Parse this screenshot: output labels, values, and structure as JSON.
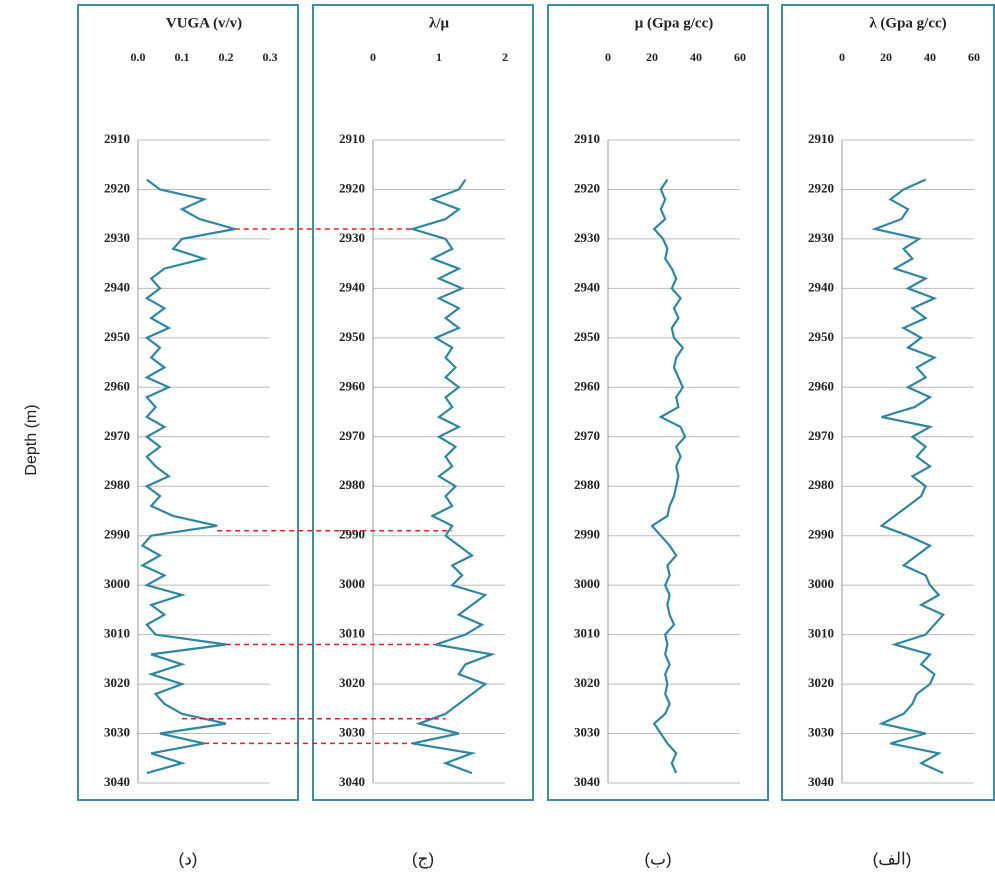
{
  "y_label": "Depth (m)",
  "depth": [
    2918,
    2920,
    2922,
    2924,
    2926,
    2928,
    2930,
    2932,
    2934,
    2936,
    2938,
    2940,
    2942,
    2944,
    2946,
    2948,
    2950,
    2952,
    2954,
    2956,
    2958,
    2960,
    2962,
    2964,
    2966,
    2968,
    2970,
    2972,
    2974,
    2976,
    2978,
    2980,
    2982,
    2984,
    2986,
    2988,
    2990,
    2992,
    2994,
    2996,
    2998,
    3000,
    3002,
    3004,
    3006,
    3008,
    3010,
    3012,
    3014,
    3016,
    3018,
    3020,
    3022,
    3024,
    3026,
    3028,
    3030,
    3032,
    3034,
    3036,
    3038
  ],
  "correlation_depths": [
    2928,
    2989,
    3012,
    3027,
    3032
  ],
  "chart_data": [
    {
      "type": "line",
      "title": "VUGA (v/v)",
      "caption": "(د)",
      "color": "#2f86a3",
      "xlim": [
        0,
        0.3
      ],
      "xticks": [
        {
          "value": 0,
          "label": "0.0"
        },
        0.1,
        0.2,
        0.3
      ],
      "ylim": [
        2910,
        3040
      ],
      "yticks": [
        2910,
        2920,
        2930,
        2940,
        2950,
        2960,
        2970,
        2980,
        2990,
        3000,
        3010,
        3020,
        3030,
        3040
      ],
      "grid": true,
      "values": [
        0.02,
        0.05,
        0.15,
        0.1,
        0.14,
        0.22,
        0.1,
        0.08,
        0.15,
        0.06,
        0.03,
        0.05,
        0.02,
        0.06,
        0.03,
        0.07,
        0.02,
        0.05,
        0.03,
        0.06,
        0.02,
        0.07,
        0.02,
        0.04,
        0.02,
        0.06,
        0.02,
        0.05,
        0.02,
        0.04,
        0.07,
        0.02,
        0.05,
        0.03,
        0.08,
        0.18,
        0.03,
        0.01,
        0.05,
        0.01,
        0.06,
        0.02,
        0.1,
        0.03,
        0.06,
        0.02,
        0.04,
        0.2,
        0.03,
        0.1,
        0.03,
        0.1,
        0.04,
        0.06,
        0.1,
        0.2,
        0.05,
        0.15,
        0.03,
        0.1,
        0.02
      ]
    },
    {
      "type": "line",
      "title": "λ/μ",
      "caption": "(ج)",
      "color": "#2f86a3",
      "xlim": [
        0,
        2
      ],
      "xticks": [
        0,
        1,
        2
      ],
      "ylim": [
        2910,
        3040
      ],
      "yticks": [
        2910,
        2920,
        2930,
        2940,
        2950,
        2960,
        2970,
        2980,
        2990,
        3000,
        3010,
        3020,
        3030,
        3040
      ],
      "grid": true,
      "values": [
        1.4,
        1.3,
        0.9,
        1.3,
        1.1,
        0.6,
        1.1,
        1.2,
        0.9,
        1.3,
        1.0,
        1.35,
        1.0,
        1.3,
        1.1,
        1.3,
        0.95,
        1.2,
        1.1,
        1.25,
        1.1,
        1.3,
        1.1,
        1.2,
        1.0,
        1.3,
        1.0,
        1.25,
        1.1,
        1.2,
        1.0,
        1.25,
        1.1,
        1.2,
        0.9,
        1.2,
        1.1,
        1.3,
        1.5,
        1.2,
        1.35,
        1.2,
        1.7,
        1.5,
        1.3,
        1.65,
        1.4,
        0.95,
        1.8,
        1.4,
        1.3,
        1.7,
        1.5,
        1.3,
        1.1,
        0.7,
        1.3,
        0.6,
        1.5,
        1.1,
        1.5
      ]
    },
    {
      "type": "line",
      "title": "μ (Gpa g/cc)",
      "caption": "(ب)",
      "color": "#2f86a3",
      "xlim": [
        0,
        60
      ],
      "xticks": [
        0,
        20,
        40,
        60
      ],
      "ylim": [
        2910,
        3040
      ],
      "yticks": [
        2910,
        2920,
        2930,
        2940,
        2950,
        2960,
        2970,
        2980,
        2990,
        3000,
        3010,
        3020,
        3030,
        3040
      ],
      "grid": true,
      "values": [
        27,
        24,
        26,
        24,
        26,
        21,
        25,
        27,
        26,
        29,
        31,
        29,
        33,
        30,
        32,
        29,
        30,
        34,
        31,
        30,
        32,
        34,
        31,
        32,
        24,
        33,
        35,
        31,
        33,
        31,
        32,
        31,
        30,
        28,
        27,
        20,
        24,
        28,
        31,
        27,
        28,
        26,
        28,
        27,
        28,
        30,
        26,
        27,
        26,
        28,
        26,
        27,
        26,
        28,
        26,
        21,
        24,
        27,
        31,
        29,
        31
      ]
    },
    {
      "type": "line",
      "title": "λ (Gpa g/cc)",
      "caption": "(الف)",
      "color": "#2f86a3",
      "xlim": [
        0,
        60
      ],
      "xticks": [
        0,
        20,
        40,
        60
      ],
      "ylim": [
        2910,
        3040
      ],
      "yticks": [
        2910,
        2920,
        2930,
        2940,
        2950,
        2960,
        2970,
        2980,
        2990,
        3000,
        3010,
        3020,
        3030,
        3040
      ],
      "grid": true,
      "values": [
        38,
        28,
        22,
        30,
        27,
        15,
        35,
        28,
        32,
        24,
        38,
        30,
        42,
        32,
        38,
        28,
        36,
        30,
        42,
        34,
        38,
        30,
        40,
        33,
        18,
        40,
        32,
        38,
        34,
        40,
        32,
        38,
        36,
        30,
        24,
        18,
        30,
        40,
        34,
        28,
        38,
        40,
        44,
        36,
        46,
        42,
        38,
        24,
        40,
        36,
        42,
        40,
        34,
        32,
        28,
        18,
        38,
        22,
        44,
        36,
        46
      ]
    }
  ]
}
